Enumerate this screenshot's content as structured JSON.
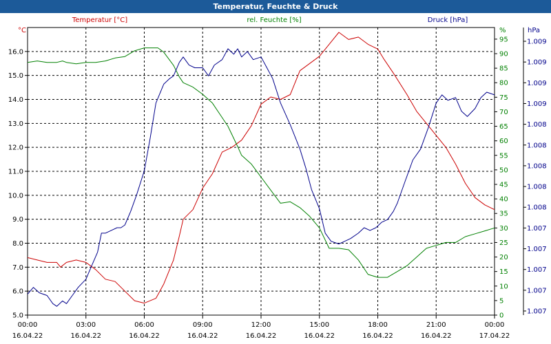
{
  "window": {
    "title": "Temperatur, Feuchte & Druck"
  },
  "colors": {
    "temperature": "#cc0000",
    "humidity": "#008000",
    "pressure": "#00008b",
    "titlebar": "#1c5a99",
    "grid": "#000000"
  },
  "chart_data": {
    "type": "line",
    "title": "Temperatur, Feuchte & Druck",
    "grid": true,
    "x_tick_labels": [
      [
        "00:00",
        "16.04.22"
      ],
      [
        "03:00",
        "16.04.22"
      ],
      [
        "06:00",
        "16.04.22"
      ],
      [
        "09:00",
        "16.04.22"
      ],
      [
        "12:00",
        "16.04.22"
      ],
      [
        "15:00",
        "16.04.22"
      ],
      [
        "18:00",
        "16.04.22"
      ],
      [
        "21:00",
        "16.04.22"
      ],
      [
        "00:00",
        "17.04.22"
      ]
    ],
    "x_range_hours": [
      0,
      24
    ],
    "axes": {
      "temperature": {
        "header": "Temperatur [°C]",
        "unit": "°C",
        "ylim": [
          5.0,
          17.0
        ],
        "ticks": [
          "5.0",
          "6.0",
          "7.0",
          "8.0",
          "9.0",
          "10.0",
          "11.0",
          "12.0",
          "13.0",
          "14.0",
          "15.0",
          "16.0"
        ]
      },
      "humidity": {
        "header": "rel. Feuchte [%]",
        "unit": "%",
        "ylim": [
          0,
          99
        ],
        "ticks": [
          "0",
          "5",
          "10",
          "15",
          "20",
          "25",
          "30",
          "35",
          "40",
          "45",
          "50",
          "55",
          "60",
          "65",
          "70",
          "75",
          "80",
          "85",
          "90",
          "95"
        ]
      },
      "pressure": {
        "header": "Druck [hPa]",
        "unit": "hPa",
        "ticks": [
          "1.007",
          "1.007",
          "1.007",
          "1.007",
          "1.007",
          "1.008",
          "1.008",
          "1.008",
          "1.008",
          "1.008",
          "1.009",
          "1.009",
          "1.009",
          "1.009"
        ]
      }
    },
    "series": [
      {
        "name": "Temperatur [°C]",
        "axis": "temperature",
        "x": [
          0,
          0.5,
          1,
          1.5,
          1.7,
          2,
          2.5,
          3,
          3.5,
          4,
          4.5,
          5,
          5.5,
          6,
          6.3,
          6.6,
          7,
          7.5,
          7.8,
          8,
          8.5,
          9,
          9.5,
          10,
          10.5,
          11,
          11.5,
          12,
          12.5,
          13,
          13.5,
          14,
          14.5,
          15,
          15.5,
          16,
          16.5,
          17,
          17.5,
          18,
          18.3,
          18.8,
          19.5,
          20,
          20.5,
          21,
          21.5,
          22,
          22.5,
          23,
          23.5,
          24
        ],
        "values": [
          7.4,
          7.3,
          7.2,
          7.2,
          7.0,
          7.2,
          7.3,
          7.2,
          6.9,
          6.5,
          6.4,
          6.0,
          5.6,
          5.5,
          5.6,
          5.7,
          6.3,
          7.3,
          8.3,
          9.0,
          9.4,
          10.3,
          10.9,
          11.8,
          12.0,
          12.3,
          12.9,
          13.8,
          14.1,
          14.0,
          14.2,
          15.2,
          15.5,
          15.8,
          16.3,
          16.8,
          16.5,
          16.6,
          16.3,
          16.1,
          15.7,
          15.1,
          14.2,
          13.5,
          13.0,
          12.5,
          12.0,
          11.3,
          10.5,
          9.9,
          9.6,
          9.4
        ]
      },
      {
        "name": "rel. Feuchte [%]",
        "axis": "humidity",
        "x": [
          0,
          0.5,
          1,
          1.5,
          1.8,
          2,
          2.5,
          3,
          3.5,
          4,
          4.5,
          5,
          5.5,
          6,
          6.3,
          6.7,
          7,
          7.5,
          7.8,
          8,
          8.5,
          9,
          9.5,
          10,
          10.3,
          10.8,
          11,
          11.5,
          12,
          12.5,
          13,
          13.5,
          14,
          14.5,
          15,
          15.5,
          16,
          16.5,
          17,
          17.5,
          18,
          18.5,
          19,
          19.5,
          20,
          20.5,
          21,
          21.5,
          22,
          22.5,
          23,
          23.5,
          24
        ],
        "values": [
          87,
          87.5,
          87,
          87,
          87.5,
          87,
          86.5,
          87,
          87,
          87.5,
          88.5,
          89,
          91,
          92,
          92,
          92,
          90.5,
          86,
          82,
          80,
          78.5,
          76,
          73,
          68,
          65,
          58,
          55,
          52,
          47.5,
          43,
          38.5,
          39,
          37,
          34,
          30,
          23,
          23,
          22.5,
          19,
          14,
          13,
          13,
          15,
          17,
          20,
          23,
          24,
          25,
          25,
          27,
          28,
          29,
          30
        ]
      },
      {
        "name": "Druck [hPa]",
        "axis": "pressure",
        "x": [
          0,
          0.3,
          0.6,
          1,
          1.3,
          1.5,
          1.8,
          2,
          2.3,
          2.6,
          3,
          3.3,
          3.6,
          3.8,
          4,
          4.3,
          4.6,
          4.8,
          5,
          5.3,
          5.6,
          6,
          6.3,
          6.6,
          7,
          7.3,
          7.5,
          7.8,
          8,
          8.3,
          8.6,
          9,
          9.3,
          9.6,
          10,
          10.3,
          10.6,
          10.8,
          11,
          11.3,
          11.6,
          12,
          12.3,
          12.6,
          13,
          13.5,
          14,
          14.3,
          14.6,
          15,
          15.3,
          15.6,
          16,
          16.3,
          16.6,
          17,
          17.3,
          17.6,
          17.9,
          18.2,
          18.5,
          18.8,
          19,
          19.4,
          19.8,
          20.2,
          20.6,
          21,
          21.3,
          21.6,
          22,
          22.3,
          22.6,
          23,
          23.3,
          23.6,
          24
        ],
        "fractions": [
          0.085,
          0.11,
          0.09,
          0.08,
          0.05,
          0.04,
          0.06,
          0.05,
          0.08,
          0.11,
          0.14,
          0.19,
          0.24,
          0.31,
          0.31,
          0.32,
          0.33,
          0.33,
          0.34,
          0.39,
          0.45,
          0.54,
          0.66,
          0.79,
          0.86,
          0.88,
          0.89,
          0.94,
          0.96,
          0.93,
          0.92,
          0.92,
          0.89,
          0.93,
          0.95,
          0.99,
          0.97,
          0.99,
          0.96,
          0.98,
          0.95,
          0.96,
          0.92,
          0.88,
          0.79,
          0.71,
          0.62,
          0.55,
          0.47,
          0.4,
          0.31,
          0.28,
          0.27,
          0.28,
          0.29,
          0.31,
          0.33,
          0.32,
          0.33,
          0.35,
          0.36,
          0.39,
          0.42,
          0.5,
          0.58,
          0.62,
          0.7,
          0.79,
          0.82,
          0.8,
          0.81,
          0.76,
          0.74,
          0.77,
          0.81,
          0.83,
          0.82
        ]
      }
    ]
  }
}
